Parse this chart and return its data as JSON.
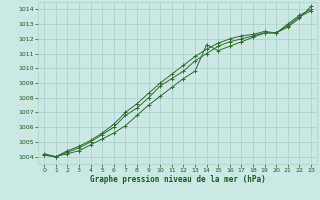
{
  "background_color": "#cce8e4",
  "grid_color": "#a8d4cc",
  "line_color": "#2d6e2d",
  "marker_color": "#2d6e2d",
  "text_color": "#1a5c1a",
  "xlabel": "Graphe pression niveau de la mer (hPa)",
  "ylim": [
    1003.5,
    1014.5
  ],
  "xlim": [
    -0.5,
    23.5
  ],
  "yticks": [
    1004,
    1005,
    1006,
    1007,
    1008,
    1009,
    1010,
    1011,
    1012,
    1013,
    1014
  ],
  "xticks": [
    0,
    1,
    2,
    3,
    4,
    5,
    6,
    7,
    8,
    9,
    10,
    11,
    12,
    13,
    14,
    15,
    16,
    17,
    18,
    19,
    20,
    21,
    22,
    23
  ],
  "series": [
    [
      1004.1,
      1004.0,
      1004.2,
      1004.4,
      1004.8,
      1005.2,
      1005.6,
      1006.1,
      1006.8,
      1007.5,
      1008.1,
      1008.7,
      1009.3,
      1009.8,
      1011.6,
      1011.2,
      1011.5,
      1011.8,
      1012.1,
      1012.4,
      1012.4,
      1012.8,
      1013.4,
      1014.2
    ],
    [
      1004.1,
      1004.0,
      1004.3,
      1004.6,
      1005.0,
      1005.5,
      1006.0,
      1006.8,
      1007.3,
      1008.0,
      1008.8,
      1009.3,
      1009.8,
      1010.5,
      1011.0,
      1011.5,
      1011.8,
      1012.0,
      1012.2,
      1012.4,
      1012.4,
      1012.9,
      1013.5,
      1013.9
    ],
    [
      1004.2,
      1004.0,
      1004.4,
      1004.7,
      1005.1,
      1005.6,
      1006.2,
      1007.0,
      1007.6,
      1008.3,
      1009.0,
      1009.6,
      1010.2,
      1010.8,
      1011.3,
      1011.7,
      1012.0,
      1012.2,
      1012.3,
      1012.5,
      1012.4,
      1013.0,
      1013.6,
      1014.0
    ]
  ]
}
